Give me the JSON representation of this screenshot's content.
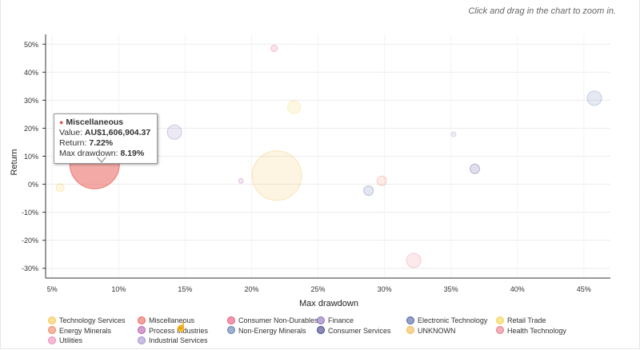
{
  "zoom_hint": "Click and drag in the chart to zoom in.",
  "chart_data": {
    "type": "scatter",
    "subtype": "bubble",
    "xlabel": "Max drawdown",
    "ylabel": "Return",
    "xlim": [
      4.5,
      47
    ],
    "ylim": [
      -33.5,
      53.5
    ],
    "x_ticks": [
      5,
      10,
      15,
      20,
      25,
      30,
      35,
      40,
      45
    ],
    "x_tick_labels": [
      "5%",
      "10%",
      "15%",
      "20%",
      "25%",
      "30%",
      "35%",
      "40%",
      "45%"
    ],
    "y_ticks": [
      50,
      40,
      30,
      20,
      10,
      0,
      -10,
      -20,
      -30
    ],
    "y_tick_labels": [
      "50%",
      "40%",
      "30%",
      "20%",
      "10%",
      "0%",
      "-10%",
      "-20%",
      "-30%"
    ],
    "legend_position": "bottom",
    "series": [
      {
        "name": "Technology Services",
        "color": "#f6c342",
        "points": [
          {
            "x": 5.6,
            "y": -1.2,
            "r": 5
          }
        ]
      },
      {
        "name": "Miscellaneous",
        "color": "#e8554e",
        "points": [
          {
            "x": 8.19,
            "y": 7.22,
            "r": 31,
            "highlighted": true
          }
        ]
      },
      {
        "name": "Consumer Non-Durables",
        "color": "#e5436e",
        "points": [
          {
            "x": 21.7,
            "y": 48.5,
            "r": 4
          }
        ]
      },
      {
        "name": "Finance",
        "color": "#7e63b3",
        "points": [
          {
            "x": 14.2,
            "y": 18.6,
            "r": 9
          }
        ]
      },
      {
        "name": "Electronic Technology",
        "color": "#3e5499",
        "points": [
          {
            "x": 28.8,
            "y": -2.3,
            "r": 6
          }
        ]
      },
      {
        "name": "Retail Trade",
        "color": "#f4d03f",
        "points": [
          {
            "x": 23.2,
            "y": 27.5,
            "r": 8
          }
        ]
      },
      {
        "name": "Energy Minerals",
        "color": "#ef7b55",
        "points": [
          {
            "x": 29.8,
            "y": 1.2,
            "r": 6
          }
        ]
      },
      {
        "name": "Process Industries",
        "color": "#b44ea8",
        "points": [
          {
            "x": 19.2,
            "y": 1.2,
            "r": 3
          }
        ]
      },
      {
        "name": "Non-Energy Minerals",
        "color": "#4f6fa8",
        "points": [
          {
            "x": 45.8,
            "y": 30.7,
            "r": 9
          }
        ]
      },
      {
        "name": "Consumer Services",
        "color": "#2d2b7e",
        "points": [
          {
            "x": 36.8,
            "y": 5.5,
            "r": 6
          }
        ]
      },
      {
        "name": "UNKNOWN",
        "color": "#f3b33d",
        "points": [
          {
            "x": 21.9,
            "y": 3.1,
            "r": 31
          }
        ]
      },
      {
        "name": "Health Technology",
        "color": "#ea6b7e",
        "points": [
          {
            "x": 32.2,
            "y": -27.2,
            "r": 9
          }
        ]
      },
      {
        "name": "Utilities",
        "color": "#ee7fb7",
        "points": []
      },
      {
        "name": "Industrial Services",
        "color": "#9c86c8",
        "points": [
          {
            "x": 35.2,
            "y": 17.8,
            "r": 3
          }
        ]
      }
    ]
  },
  "tooltip": {
    "series": "Miscellaneous",
    "value_label": "Value:",
    "value": "AU$1,606,904.37",
    "return_label": "Return:",
    "return_value": "7.22%",
    "drawdown_label": "Max drawdown:",
    "drawdown_value": "8.19%"
  }
}
